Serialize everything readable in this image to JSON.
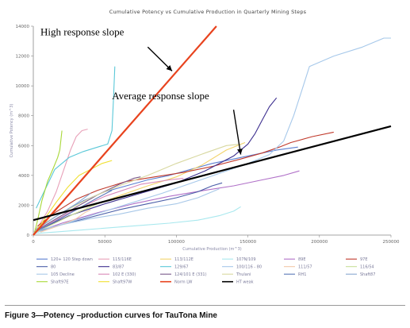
{
  "caption": "Figure 3—Potency –production curves for TauTona Mine",
  "chart_data": {
    "type": "line",
    "title": "Cumulative Potency vs Cumulative Production in Quarterly Mining Steps",
    "xlabel": "Cumulative Production (m^3)",
    "ylabel": "Cumulative Potency (m^3)",
    "xlim": [
      0,
      250000
    ],
    "ylim": [
      0,
      14000
    ],
    "xticks": [
      0,
      50000,
      100000,
      150000,
      200000,
      250000
    ],
    "xtick_labels": [
      "0",
      "50000",
      "100000",
      "150000",
      "200000",
      "250000"
    ],
    "yticks": [
      0,
      2000,
      4000,
      6000,
      8000,
      10000,
      12000,
      14000
    ],
    "ytick_labels": [
      "0",
      "2000",
      "4000",
      "6000",
      "8000",
      "10000",
      "12000",
      "14000"
    ],
    "grid": false,
    "legend_position": "bottom",
    "annotations": [
      {
        "text": "High response slope",
        "x": 5000,
        "y": 13400
      },
      {
        "text": "Average response slope",
        "x": 55000,
        "y": 9100
      }
    ],
    "arrows": [
      {
        "from": [
          80000,
          12600
        ],
        "to": [
          97000,
          11000
        ]
      },
      {
        "from": [
          140000,
          8400
        ],
        "to": [
          145000,
          5400
        ]
      }
    ],
    "series": [
      {
        "name": "120+ 120 Step down",
        "color": "#5b7fd1",
        "points": [
          [
            2000,
            400
          ],
          [
            10000,
            900
          ],
          [
            20000,
            1500
          ],
          [
            35000,
            2300
          ],
          [
            50000,
            2900
          ],
          [
            65000,
            3300
          ],
          [
            80000,
            3700
          ],
          [
            95000,
            4000
          ],
          [
            110000,
            4400
          ],
          [
            125000,
            4800
          ],
          [
            140000,
            5100
          ],
          [
            155000,
            5400
          ],
          [
            170000,
            5700
          ],
          [
            185000,
            5900
          ]
        ]
      },
      {
        "name": "115/116E",
        "color": "#e8a0b8",
        "points": [
          [
            500,
            200
          ],
          [
            5000,
            800
          ],
          [
            10000,
            1600
          ],
          [
            16000,
            2900
          ],
          [
            21000,
            4300
          ],
          [
            26000,
            5700
          ],
          [
            30000,
            6600
          ],
          [
            34000,
            7000
          ],
          [
            38000,
            7100
          ]
        ]
      },
      {
        "name": "113/112E",
        "color": "#f2d36a",
        "points": [
          [
            1000,
            200
          ],
          [
            12000,
            700
          ],
          [
            28000,
            1400
          ],
          [
            45000,
            2100
          ],
          [
            62000,
            2700
          ],
          [
            80000,
            3300
          ],
          [
            100000,
            3900
          ],
          [
            118000,
            4700
          ],
          [
            135000,
            5700
          ],
          [
            148000,
            6200
          ]
        ]
      },
      {
        "name": "107N/109",
        "color": "#a8e8ee",
        "points": [
          [
            1000,
            100
          ],
          [
            15000,
            200
          ],
          [
            35000,
            350
          ],
          [
            55000,
            500
          ],
          [
            75000,
            650
          ],
          [
            95000,
            800
          ],
          [
            115000,
            1000
          ],
          [
            130000,
            1300
          ],
          [
            140000,
            1600
          ],
          [
            145000,
            1900
          ]
        ]
      },
      {
        "name": "89E",
        "color": "#b070c8",
        "points": [
          [
            2000,
            200
          ],
          [
            20000,
            800
          ],
          [
            45000,
            1500
          ],
          [
            70000,
            2100
          ],
          [
            95000,
            2600
          ],
          [
            120000,
            3000
          ],
          [
            140000,
            3300
          ],
          [
            160000,
            3700
          ],
          [
            175000,
            4000
          ],
          [
            186000,
            4300
          ]
        ]
      },
      {
        "name": "97E",
        "color": "#c0392b",
        "points": [
          [
            3000,
            600
          ],
          [
            15000,
            1500
          ],
          [
            30000,
            2400
          ],
          [
            45000,
            3000
          ],
          [
            65000,
            3600
          ],
          [
            85000,
            3900
          ],
          [
            105000,
            4200
          ],
          [
            125000,
            4600
          ],
          [
            145000,
            5100
          ],
          [
            160000,
            5500
          ],
          [
            172000,
            5900
          ],
          [
            180000,
            6200
          ],
          [
            195000,
            6600
          ],
          [
            210000,
            6900
          ]
        ]
      },
      {
        "name": "80",
        "color": "#4b5ea8",
        "points": [
          [
            1000,
            200
          ],
          [
            20000,
            700
          ],
          [
            40000,
            1200
          ],
          [
            60000,
            1700
          ],
          [
            80000,
            2100
          ],
          [
            100000,
            2500
          ],
          [
            115000,
            2900
          ],
          [
            125000,
            3300
          ],
          [
            132000,
            3500
          ]
        ]
      },
      {
        "name": "83/87",
        "color": "#3d2f8f",
        "points": [
          [
            3000,
            300
          ],
          [
            25000,
            1300
          ],
          [
            50000,
            2100
          ],
          [
            75000,
            2800
          ],
          [
            100000,
            3500
          ],
          [
            120000,
            4300
          ],
          [
            140000,
            5300
          ],
          [
            150000,
            6100
          ],
          [
            155000,
            6800
          ],
          [
            160000,
            7700
          ],
          [
            165000,
            8600
          ],
          [
            170000,
            9200
          ]
        ]
      },
      {
        "name": "129/67",
        "color": "#5ac8d8",
        "points": [
          [
            2000,
            1800
          ],
          [
            8000,
            3000
          ],
          [
            15000,
            4400
          ],
          [
            25000,
            5200
          ],
          [
            35000,
            5600
          ],
          [
            45000,
            5900
          ],
          [
            52000,
            6100
          ],
          [
            55000,
            7000
          ],
          [
            56000,
            9000
          ],
          [
            57000,
            11300
          ]
        ]
      },
      {
        "name": "100/116 - 80",
        "color": "#a6c8ea",
        "points": [
          [
            3000,
            200
          ],
          [
            30000,
            1000
          ],
          [
            60000,
            1900
          ],
          [
            90000,
            2800
          ],
          [
            120000,
            3800
          ],
          [
            150000,
            4800
          ],
          [
            165000,
            5400
          ],
          [
            175000,
            6300
          ],
          [
            182000,
            8000
          ],
          [
            188000,
            9800
          ],
          [
            193000,
            11300
          ],
          [
            210000,
            12000
          ],
          [
            230000,
            12600
          ],
          [
            245000,
            13200
          ],
          [
            250000,
            13200
          ]
        ]
      },
      {
        "name": "111/57",
        "color": "#f2c8a8",
        "points": [
          [
            5000,
            200
          ],
          [
            20000,
            700
          ],
          [
            30000,
            1100
          ],
          [
            36000,
            1500
          ],
          [
            40000,
            1700
          ]
        ]
      },
      {
        "name": "116/54",
        "color": "#c8e098",
        "points": [
          [
            2000,
            200
          ],
          [
            15000,
            800
          ],
          [
            28000,
            1400
          ],
          [
            38000,
            1800
          ],
          [
            45000,
            2100
          ]
        ]
      },
      {
        "name": "105 Decline",
        "color": "#a8c8e8",
        "points": [
          [
            2000,
            300
          ],
          [
            20000,
            700
          ],
          [
            40000,
            1100
          ],
          [
            60000,
            1400
          ],
          [
            80000,
            1800
          ],
          [
            100000,
            2100
          ],
          [
            115000,
            2500
          ],
          [
            125000,
            2900
          ],
          [
            130000,
            3100
          ]
        ]
      },
      {
        "name": "102 E (330)",
        "color": "#d888b8",
        "points": [
          [
            3000,
            300
          ],
          [
            25000,
            1500
          ],
          [
            50000,
            2600
          ],
          [
            75000,
            3400
          ],
          [
            95000,
            3700
          ],
          [
            105000,
            3800
          ]
        ]
      },
      {
        "name": "124/101 E (331)",
        "color": "#7a5a8a",
        "points": [
          [
            2000,
            300
          ],
          [
            25000,
            1600
          ],
          [
            45000,
            2700
          ],
          [
            60000,
            3400
          ],
          [
            70000,
            3800
          ],
          [
            75000,
            3900
          ]
        ]
      },
      {
        "name": "Thulani",
        "color": "#d8d8a0",
        "points": [
          [
            1000,
            400
          ],
          [
            20000,
            1500
          ],
          [
            40000,
            2500
          ],
          [
            60000,
            3300
          ],
          [
            80000,
            4000
          ],
          [
            100000,
            4800
          ],
          [
            120000,
            5500
          ],
          [
            135000,
            6000
          ],
          [
            145000,
            6100
          ]
        ]
      },
      {
        "name": "RH1",
        "color": "#5a78b8",
        "points": [
          [
            1000,
            200
          ],
          [
            15000,
            900
          ],
          [
            30000,
            1700
          ],
          [
            45000,
            2500
          ],
          [
            55000,
            3000
          ]
        ]
      },
      {
        "name": "Shaft87",
        "color": "#88a8d0",
        "points": [
          [
            1000,
            300
          ],
          [
            15000,
            1200
          ],
          [
            30000,
            2100
          ],
          [
            40000,
            2800
          ]
        ]
      },
      {
        "name": "Shaft97E",
        "color": "#a8d838",
        "points": [
          [
            500,
            0
          ],
          [
            3000,
            1000
          ],
          [
            6000,
            2300
          ],
          [
            10000,
            3600
          ],
          [
            14000,
            4500
          ],
          [
            17000,
            5200
          ],
          [
            18500,
            5700
          ],
          [
            20000,
            7000
          ]
        ]
      },
      {
        "name": "Shaft97W",
        "color": "#f0e030",
        "points": [
          [
            500,
            0
          ],
          [
            8000,
            1100
          ],
          [
            16000,
            2200
          ],
          [
            24000,
            3200
          ],
          [
            32000,
            4000
          ],
          [
            40000,
            4400
          ],
          [
            48000,
            4800
          ],
          [
            55000,
            5000
          ]
        ]
      },
      {
        "name": "Norm LW",
        "color": "#e8431e",
        "points": [
          [
            0,
            0
          ],
          [
            128000,
            14000
          ]
        ]
      },
      {
        "name": "HT weak",
        "color": "#000000",
        "points": [
          [
            0,
            1000
          ],
          [
            250000,
            7300
          ]
        ]
      }
    ]
  }
}
